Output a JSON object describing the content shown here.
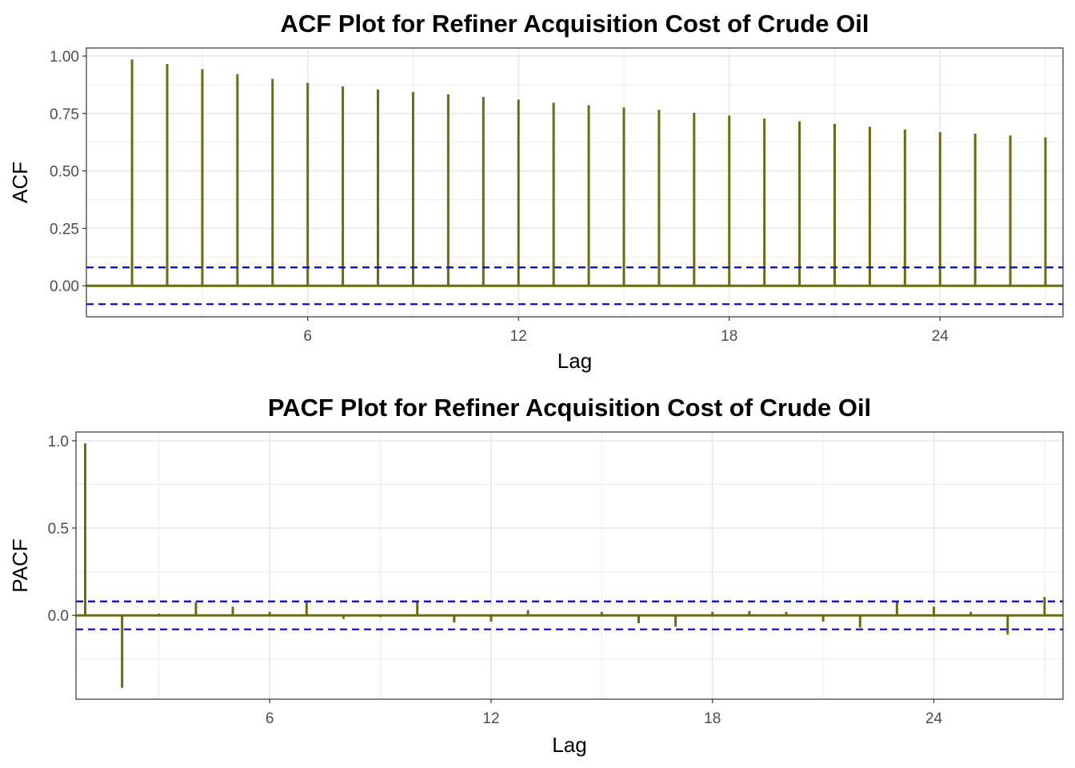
{
  "chart_data": [
    {
      "type": "bar",
      "title": "ACF Plot for Refiner Acquisition Cost of Crude Oil",
      "xlabel": "Lag",
      "ylabel": "ACF",
      "xlim": [
        -0.3,
        27.5
      ],
      "ylim": [
        -0.135,
        1.035
      ],
      "x_ticks": [
        6,
        12,
        18,
        24
      ],
      "y_ticks": [
        1.0,
        0.75,
        0.5,
        0.25,
        0.0
      ],
      "y_tick_labels": [
        "1.00",
        "0.75",
        "0.50",
        "0.25",
        "0.00"
      ],
      "y_minor_ticks": [
        0.875,
        0.625,
        0.375,
        0.125,
        -0.125
      ],
      "x_minor_ticks": [
        3,
        9,
        15,
        21,
        27
      ],
      "confidence_limit": 0.08,
      "grid": true,
      "colors": {
        "bars": "#6b6b12",
        "zero_line": "#6b6b12",
        "ci_line": "#0000ff"
      },
      "lags": [
        1,
        2,
        3,
        4,
        5,
        6,
        7,
        8,
        9,
        10,
        11,
        12,
        13,
        14,
        15,
        16,
        17,
        18,
        19,
        20,
        21,
        22,
        23,
        24,
        25,
        26,
        27
      ],
      "values": [
        0.985,
        0.965,
        0.943,
        0.921,
        0.901,
        0.883,
        0.868,
        0.855,
        0.843,
        0.833,
        0.822,
        0.81,
        0.797,
        0.786,
        0.776,
        0.766,
        0.753,
        0.741,
        0.728,
        0.716,
        0.704,
        0.692,
        0.68,
        0.669,
        0.662,
        0.654,
        0.646
      ]
    },
    {
      "type": "bar",
      "title": "PACF Plot for Refiner Acquisition Cost of Crude Oil",
      "xlabel": "Lag",
      "ylabel": "PACF",
      "xlim": [
        0.75,
        27.5
      ],
      "ylim": [
        -0.48,
        1.05
      ],
      "x_ticks": [
        6,
        12,
        18,
        24
      ],
      "y_ticks": [
        1.0,
        0.5,
        0.0
      ],
      "y_tick_labels": [
        "1.0",
        "0.5",
        "0.0"
      ],
      "y_minor_ticks": [
        0.75,
        0.25,
        -0.25
      ],
      "x_minor_ticks": [
        3,
        9,
        15,
        21,
        27
      ],
      "confidence_limit": 0.08,
      "grid": true,
      "colors": {
        "bars": "#6b6b12",
        "zero_line": "#6b6b12",
        "ci_line": "#0000ff"
      },
      "lags": [
        1,
        2,
        3,
        4,
        5,
        6,
        7,
        8,
        9,
        10,
        11,
        12,
        13,
        14,
        15,
        16,
        17,
        18,
        19,
        20,
        21,
        22,
        23,
        24,
        25,
        26,
        27
      ],
      "values": [
        0.985,
        -0.415,
        0.01,
        0.075,
        0.05,
        0.02,
        0.08,
        -0.02,
        -0.01,
        0.075,
        -0.04,
        -0.035,
        0.03,
        0.005,
        0.02,
        -0.045,
        -0.065,
        0.02,
        0.025,
        0.02,
        -0.035,
        -0.07,
        0.08,
        0.05,
        0.02,
        -0.11,
        0.105
      ]
    }
  ]
}
